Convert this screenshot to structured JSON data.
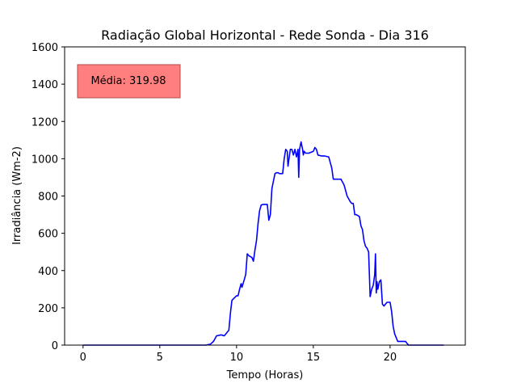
{
  "chart_data": {
    "type": "line",
    "title": "Radiação Global Horizontal - Rede Sonda - Dia 316",
    "xlabel": "Tempo (Horas)",
    "ylabel": "Irradiância (Wm-2)",
    "xlim": [
      -1.2,
      24.9
    ],
    "ylim": [
      0,
      1600
    ],
    "x_ticks": [
      0,
      5,
      10,
      15,
      20
    ],
    "y_ticks": [
      0,
      200,
      400,
      600,
      800,
      1000,
      1200,
      1400,
      1600
    ],
    "grid": false,
    "annotation": {
      "text": "Média: 319.98",
      "box_color": "#ff7f7f",
      "box_edge": "#b04a4a"
    },
    "series": [
      {
        "color": "#0000ff",
        "x": [
          0,
          1,
          2,
          3,
          4,
          5,
          6,
          7,
          8,
          8.3,
          8.5,
          8.7,
          9.0,
          9.2,
          9.3,
          9.4,
          9.5,
          9.6,
          9.7,
          10.0,
          10.05,
          10.1,
          10.2,
          10.3,
          10.35,
          10.5,
          10.6,
          10.7,
          10.8,
          11.0,
          11.1,
          11.2,
          11.3,
          11.4,
          11.5,
          11.6,
          11.7,
          11.8,
          12.0,
          12.1,
          12.2,
          12.3,
          12.4,
          12.5,
          12.6,
          12.7,
          12.8,
          13.0,
          13.1,
          13.2,
          13.3,
          13.35,
          13.5,
          13.6,
          13.7,
          13.8,
          13.9,
          14.0,
          14.05,
          14.1,
          14.2,
          14.3,
          14.35,
          14.4,
          14.5,
          14.6,
          14.7,
          15.0,
          15.1,
          15.2,
          15.3,
          15.5,
          15.7,
          16.0,
          16.2,
          16.3,
          16.5,
          16.8,
          17.0,
          17.2,
          17.4,
          17.5,
          17.6,
          17.7,
          17.8,
          18.0,
          18.1,
          18.2,
          18.3,
          18.4,
          18.5,
          18.6,
          18.7,
          18.8,
          18.9,
          19.0,
          19.05,
          19.1,
          19.15,
          19.2,
          19.3,
          19.4,
          19.5,
          19.6,
          19.7,
          19.8,
          19.9,
          20.0,
          20.1,
          20.2,
          20.3,
          20.5,
          20.7,
          21.0,
          21.2,
          22.0,
          23.0,
          23.5
        ],
        "y": [
          0,
          0,
          0,
          0,
          0,
          0,
          0,
          0,
          0,
          5,
          20,
          50,
          55,
          50,
          60,
          70,
          80,
          170,
          240,
          265,
          265,
          265,
          300,
          330,
          310,
          350,
          380,
          490,
          480,
          470,
          450,
          510,
          560,
          650,
          720,
          750,
          755,
          755,
          755,
          670,
          700,
          840,
          880,
          920,
          925,
          925,
          920,
          920,
          1000,
          1050,
          1040,
          960,
          1050,
          1050,
          1020,
          1050,
          1010,
          1050,
          900,
          1050,
          1090,
          1050,
          1020,
          1040,
          1030,
          1030,
          1030,
          1040,
          1060,
          1050,
          1020,
          1015,
          1015,
          1010,
          950,
          890,
          890,
          890,
          860,
          800,
          770,
          760,
          760,
          700,
          700,
          690,
          640,
          620,
          560,
          530,
          520,
          500,
          260,
          300,
          320,
          380,
          490,
          280,
          340,
          300,
          340,
          350,
          220,
          210,
          220,
          230,
          230,
          230,
          180,
          100,
          60,
          20,
          20,
          20,
          0,
          0,
          0,
          0
        ]
      }
    ]
  }
}
